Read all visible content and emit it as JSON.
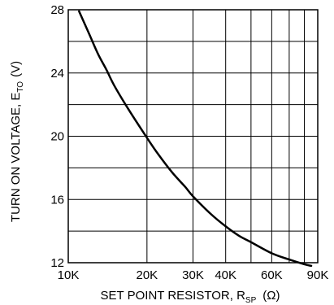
{
  "chart_data": {
    "type": "line",
    "title": "",
    "xlabel": "SET POINT RESISTOR, R",
    "xlabel_sub": "SP",
    "xlabel_unit": "(Ω)",
    "ylabel": "TURN ON VOLTAGE, E",
    "ylabel_sub": "TO",
    "ylabel_unit": "(V)",
    "x_scale": "log",
    "xlim": [
      10000,
      90000
    ],
    "ylim": [
      12,
      28
    ],
    "grid": true,
    "x_gridlines": [
      10000,
      20000,
      30000,
      40000,
      50000,
      60000,
      70000,
      80000,
      90000
    ],
    "y_gridlines": [
      12,
      14,
      16,
      18,
      20,
      22,
      24,
      26,
      28
    ],
    "x_ticks": [
      {
        "value": 10000,
        "label": "10K"
      },
      {
        "value": 20000,
        "label": "20K"
      },
      {
        "value": 30000,
        "label": "30K"
      },
      {
        "value": 40000,
        "label": "40K"
      },
      {
        "value": 60000,
        "label": "60K"
      },
      {
        "value": 90000,
        "label": "90K"
      }
    ],
    "y_ticks": [
      {
        "value": 28,
        "label": "28"
      },
      {
        "value": 24,
        "label": "24"
      },
      {
        "value": 20,
        "label": "20"
      },
      {
        "value": 16,
        "label": "16"
      },
      {
        "value": 12,
        "label": "12"
      }
    ],
    "series": [
      {
        "x": [
          11000,
          12000,
          13000,
          14000,
          15000,
          17000,
          20000,
          22000,
          25000,
          28000,
          30000,
          35000,
          40000,
          45000,
          50000,
          60000,
          70000,
          80000,
          85000
        ],
        "y": [
          27.9,
          26.5,
          25.2,
          24.2,
          23.2,
          21.7,
          19.9,
          18.9,
          17.7,
          16.8,
          16.2,
          15.1,
          14.3,
          13.7,
          13.3,
          12.6,
          12.2,
          11.9,
          11.8
        ]
      }
    ],
    "line_color": "#000000"
  }
}
